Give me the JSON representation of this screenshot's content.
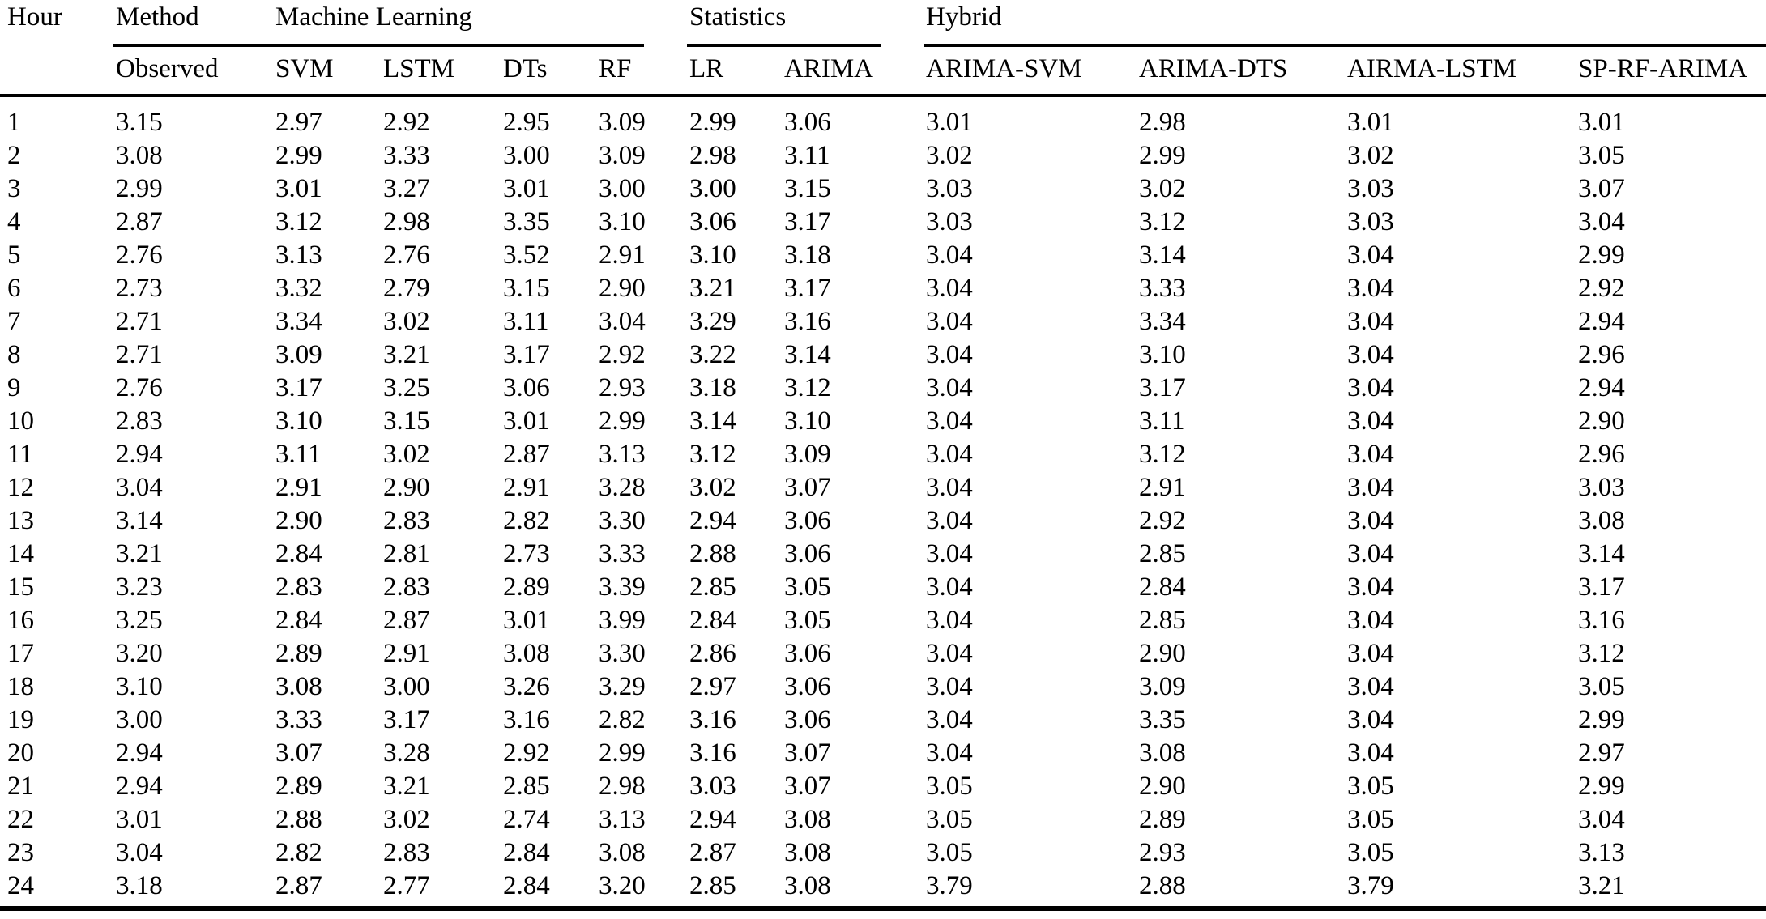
{
  "table": {
    "hour_label": "Hour",
    "groups": {
      "method": {
        "label": "Method"
      },
      "machine_learning": {
        "label": "Machine Learning"
      },
      "statistics": {
        "label": "Statistics"
      },
      "hybrid": {
        "label": "Hybrid"
      }
    },
    "sub_headers": [
      "Observed",
      "SVM",
      "LSTM",
      "DTs",
      "RF",
      "LR",
      "ARIMA",
      "ARIMA-SVM",
      "ARIMA-DTS",
      "AIRMA-LSTM",
      "SP-RF-ARIMA"
    ],
    "text_color": "#000000",
    "background_color": "#ffffff"
  },
  "chart_data": {
    "type": "table",
    "title": "",
    "row_header": "Hour",
    "columns": [
      "Observed",
      "SVM",
      "LSTM",
      "DTs",
      "RF",
      "LR",
      "ARIMA",
      "ARIMA-SVM",
      "ARIMA-DTS",
      "AIRMA-LSTM",
      "SP-RF-ARIMA"
    ],
    "rows": [
      {
        "hour": "1",
        "values": [
          "3.15",
          "2.97",
          "2.92",
          "2.95",
          "3.09",
          "2.99",
          "3.06",
          "3.01",
          "2.98",
          "3.01",
          "3.01"
        ]
      },
      {
        "hour": "2",
        "values": [
          "3.08",
          "2.99",
          "3.33",
          "3.00",
          "3.09",
          "2.98",
          "3.11",
          "3.02",
          "2.99",
          "3.02",
          "3.05"
        ]
      },
      {
        "hour": "3",
        "values": [
          "2.99",
          "3.01",
          "3.27",
          "3.01",
          "3.00",
          "3.00",
          "3.15",
          "3.03",
          "3.02",
          "3.03",
          "3.07"
        ]
      },
      {
        "hour": "4",
        "values": [
          "2.87",
          "3.12",
          "2.98",
          "3.35",
          "3.10",
          "3.06",
          "3.17",
          "3.03",
          "3.12",
          "3.03",
          "3.04"
        ]
      },
      {
        "hour": "5",
        "values": [
          "2.76",
          "3.13",
          "2.76",
          "3.52",
          "2.91",
          "3.10",
          "3.18",
          "3.04",
          "3.14",
          "3.04",
          "2.99"
        ]
      },
      {
        "hour": "6",
        "values": [
          "2.73",
          "3.32",
          "2.79",
          "3.15",
          "2.90",
          "3.21",
          "3.17",
          "3.04",
          "3.33",
          "3.04",
          "2.92"
        ]
      },
      {
        "hour": "7",
        "values": [
          "2.71",
          "3.34",
          "3.02",
          "3.11",
          "3.04",
          "3.29",
          "3.16",
          "3.04",
          "3.34",
          "3.04",
          "2.94"
        ]
      },
      {
        "hour": "8",
        "values": [
          "2.71",
          "3.09",
          "3.21",
          "3.17",
          "2.92",
          "3.22",
          "3.14",
          "3.04",
          "3.10",
          "3.04",
          "2.96"
        ]
      },
      {
        "hour": "9",
        "values": [
          "2.76",
          "3.17",
          "3.25",
          "3.06",
          "2.93",
          "3.18",
          "3.12",
          "3.04",
          "3.17",
          "3.04",
          "2.94"
        ]
      },
      {
        "hour": "10",
        "values": [
          "2.83",
          "3.10",
          "3.15",
          "3.01",
          "2.99",
          "3.14",
          "3.10",
          "3.04",
          "3.11",
          "3.04",
          "2.90"
        ]
      },
      {
        "hour": "11",
        "values": [
          "2.94",
          "3.11",
          "3.02",
          "2.87",
          "3.13",
          "3.12",
          "3.09",
          "3.04",
          "3.12",
          "3.04",
          "2.96"
        ]
      },
      {
        "hour": "12",
        "values": [
          "3.04",
          "2.91",
          "2.90",
          "2.91",
          "3.28",
          "3.02",
          "3.07",
          "3.04",
          "2.91",
          "3.04",
          "3.03"
        ]
      },
      {
        "hour": "13",
        "values": [
          "3.14",
          "2.90",
          "2.83",
          "2.82",
          "3.30",
          "2.94",
          "3.06",
          "3.04",
          "2.92",
          "3.04",
          "3.08"
        ]
      },
      {
        "hour": "14",
        "values": [
          "3.21",
          "2.84",
          "2.81",
          "2.73",
          "3.33",
          "2.88",
          "3.06",
          "3.04",
          "2.85",
          "3.04",
          "3.14"
        ]
      },
      {
        "hour": "15",
        "values": [
          "3.23",
          "2.83",
          "2.83",
          "2.89",
          "3.39",
          "2.85",
          "3.05",
          "3.04",
          "2.84",
          "3.04",
          "3.17"
        ]
      },
      {
        "hour": "16",
        "values": [
          "3.25",
          "2.84",
          "2.87",
          "3.01",
          "3.99",
          "2.84",
          "3.05",
          "3.04",
          "2.85",
          "3.04",
          "3.16"
        ]
      },
      {
        "hour": "17",
        "values": [
          "3.20",
          "2.89",
          "2.91",
          "3.08",
          "3.30",
          "2.86",
          "3.06",
          "3.04",
          "2.90",
          "3.04",
          "3.12"
        ]
      },
      {
        "hour": "18",
        "values": [
          "3.10",
          "3.08",
          "3.00",
          "3.26",
          "3.29",
          "2.97",
          "3.06",
          "3.04",
          "3.09",
          "3.04",
          "3.05"
        ]
      },
      {
        "hour": "19",
        "values": [
          "3.00",
          "3.33",
          "3.17",
          "3.16",
          "2.82",
          "3.16",
          "3.06",
          "3.04",
          "3.35",
          "3.04",
          "2.99"
        ]
      },
      {
        "hour": "20",
        "values": [
          "2.94",
          "3.07",
          "3.28",
          "2.92",
          "2.99",
          "3.16",
          "3.07",
          "3.04",
          "3.08",
          "3.04",
          "2.97"
        ]
      },
      {
        "hour": "21",
        "values": [
          "2.94",
          "2.89",
          "3.21",
          "2.85",
          "2.98",
          "3.03",
          "3.07",
          "3.05",
          "2.90",
          "3.05",
          "2.99"
        ]
      },
      {
        "hour": "22",
        "values": [
          "3.01",
          "2.88",
          "3.02",
          "2.74",
          "3.13",
          "2.94",
          "3.08",
          "3.05",
          "2.89",
          "3.05",
          "3.04"
        ]
      },
      {
        "hour": "23",
        "values": [
          "3.04",
          "2.82",
          "2.83",
          "2.84",
          "3.08",
          "2.87",
          "3.08",
          "3.05",
          "2.93",
          "3.05",
          "3.13"
        ]
      },
      {
        "hour": "24",
        "values": [
          "3.18",
          "2.87",
          "2.77",
          "2.84",
          "3.20",
          "2.85",
          "3.08",
          "3.79",
          "2.88",
          "3.79",
          "3.21"
        ]
      }
    ]
  }
}
